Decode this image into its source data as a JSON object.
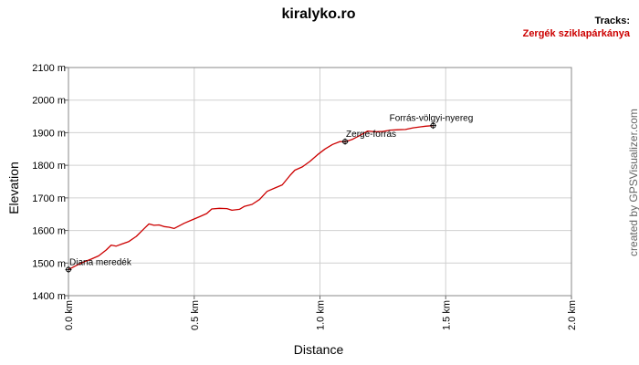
{
  "chart_data": {
    "type": "line",
    "title": "kiralyko.ro",
    "legend": {
      "heading": "Tracks:",
      "entries": [
        "Zergék sziklapárkánya"
      ],
      "position": "top-right"
    },
    "credit": "created by GPSVisualizer.com",
    "xlabel": "Distance",
    "ylabel": "Elevation",
    "xlim": [
      0,
      2.0
    ],
    "ylim": [
      1400,
      2100
    ],
    "grid": true,
    "x_ticks": [
      0,
      0.5,
      1.0,
      1.5,
      2.0
    ],
    "x_tick_labels": [
      "0.0 km",
      "0.5 km",
      "1.0 km",
      "1.5 km",
      "2.0 km"
    ],
    "y_ticks": [
      1400,
      1500,
      1600,
      1700,
      1800,
      1900,
      2000,
      2100
    ],
    "y_tick_labels": [
      "1400 m",
      "1500 m",
      "1600 m",
      "1700 m",
      "1800 m",
      "1900 m",
      "2000 m",
      "2100 m"
    ],
    "series": [
      {
        "name": "Zergék sziklapárkánya",
        "color": "#cc0000",
        "x": [
          0.0,
          0.03,
          0.06,
          0.09,
          0.12,
          0.15,
          0.17,
          0.19,
          0.21,
          0.24,
          0.27,
          0.3,
          0.32,
          0.34,
          0.36,
          0.38,
          0.4,
          0.42,
          0.44,
          0.46,
          0.49,
          0.52,
          0.55,
          0.57,
          0.6,
          0.63,
          0.65,
          0.68,
          0.7,
          0.73,
          0.76,
          0.79,
          0.82,
          0.85,
          0.88,
          0.9,
          0.93,
          0.96,
          0.99,
          1.02,
          1.05,
          1.08,
          1.1,
          1.13,
          1.16,
          1.19,
          1.22,
          1.25,
          1.28,
          1.31,
          1.34,
          1.37,
          1.4,
          1.42,
          1.45
        ],
        "y": [
          1480,
          1492,
          1503,
          1512,
          1522,
          1540,
          1555,
          1552,
          1558,
          1566,
          1582,
          1605,
          1620,
          1616,
          1617,
          1612,
          1610,
          1606,
          1614,
          1622,
          1632,
          1642,
          1652,
          1666,
          1668,
          1667,
          1662,
          1665,
          1674,
          1680,
          1695,
          1720,
          1730,
          1740,
          1768,
          1785,
          1795,
          1812,
          1832,
          1850,
          1864,
          1873,
          1872,
          1880,
          1892,
          1905,
          1903,
          1904,
          1908,
          1909,
          1910,
          1915,
          1918,
          1920,
          1922
        ]
      }
    ],
    "waypoints": [
      {
        "label": "Diana meredék",
        "x": 0.0,
        "y": 1480
      },
      {
        "label": "Zerge-forrás",
        "x": 1.1,
        "y": 1873
      },
      {
        "label": "Forrás-völgyi-nyereg",
        "x": 1.45,
        "y": 1922
      }
    ]
  }
}
